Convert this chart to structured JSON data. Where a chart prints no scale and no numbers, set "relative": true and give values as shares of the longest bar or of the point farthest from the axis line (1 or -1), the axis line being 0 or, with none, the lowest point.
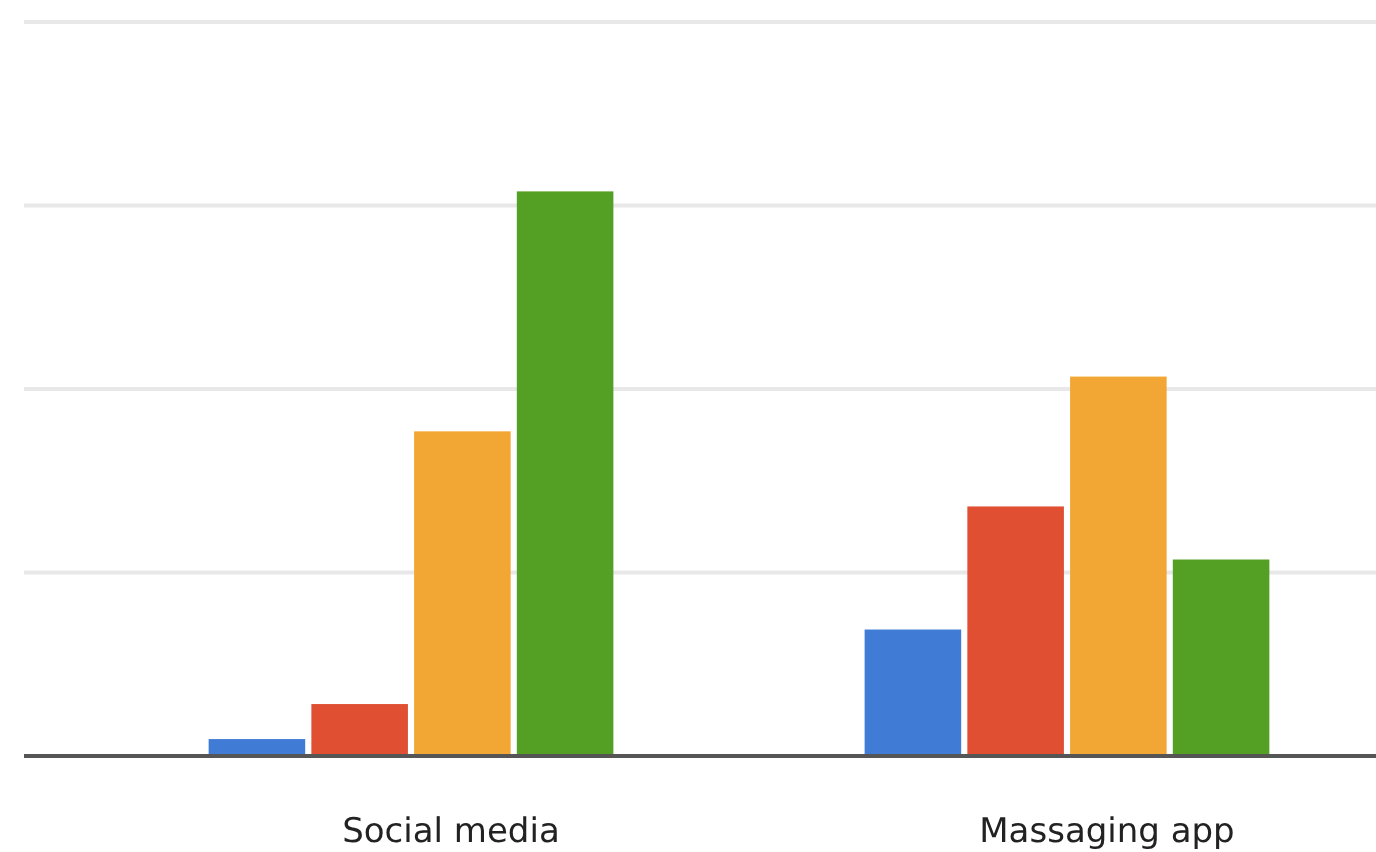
{
  "chart_data": {
    "type": "bar",
    "relative": true,
    "grid": true,
    "categories": [
      "Social media",
      "Massaging app"
    ],
    "series": [
      {
        "color": "#407bd5",
        "values": [
          0.03,
          0.224
        ]
      },
      {
        "color": "#e04f31",
        "values": [
          0.092,
          0.442
        ]
      },
      {
        "color": "#f2a735",
        "values": [
          0.575,
          0.672
        ]
      },
      {
        "color": "#54a024",
        "values": [
          1,
          0.348
        ]
      }
    ]
  }
}
